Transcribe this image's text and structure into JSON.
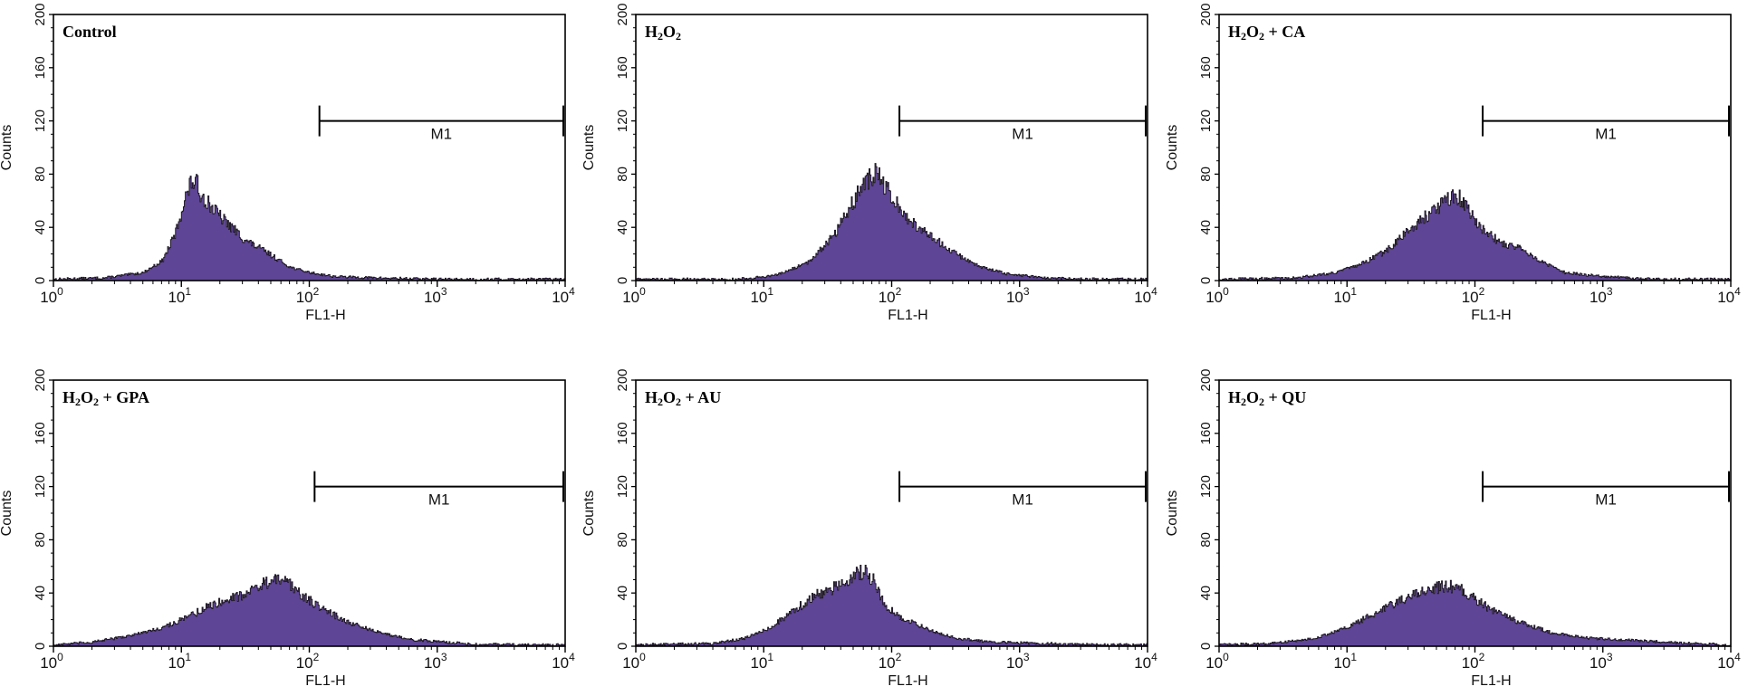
{
  "figure": {
    "histogram_fill": "#5e4595",
    "histogram_stroke": "#1a1320",
    "axis_color": "#000000"
  },
  "chart_data": [
    {
      "type": "area",
      "title": "Control",
      "title_parts": [
        {
          "t": "Control"
        }
      ],
      "xlabel": "FL1-H",
      "ylabel": "Counts",
      "xscale": "log10",
      "xlim": [
        1,
        10000
      ],
      "ylim": [
        0,
        200
      ],
      "yticks": [
        0,
        40,
        80,
        120,
        160,
        200
      ],
      "xticks": [
        {
          "base": "10",
          "exp": "0"
        },
        {
          "base": "10",
          "exp": "1"
        },
        {
          "base": "10",
          "exp": "2"
        },
        {
          "base": "10",
          "exp": "3"
        },
        {
          "base": "10",
          "exp": "4"
        }
      ],
      "marker": {
        "label": "M1",
        "from": 120,
        "to": 10000,
        "y": 120
      },
      "histogram": {
        "x_log": [
          0.0,
          0.4,
          0.7,
          0.85,
          0.95,
          1.02,
          1.08,
          1.12,
          1.15,
          1.3,
          1.5,
          1.65,
          1.75,
          1.85,
          2.0,
          2.2,
          2.5,
          3.0,
          4.0
        ],
        "counts": [
          1,
          2,
          6,
          15,
          35,
          60,
          75,
          72,
          65,
          48,
          30,
          22,
          16,
          10,
          6,
          3,
          2,
          1,
          1
        ]
      }
    },
    {
      "type": "area",
      "title": "H₂O₂",
      "title_parts": [
        {
          "t": "H"
        },
        {
          "t": "2",
          "sub": true
        },
        {
          "t": "O"
        },
        {
          "t": "2",
          "sub": true
        }
      ],
      "xlabel": "FL1-H",
      "ylabel": "Counts",
      "xscale": "log10",
      "xlim": [
        1,
        10000
      ],
      "ylim": [
        0,
        200
      ],
      "yticks": [
        0,
        40,
        80,
        120,
        160,
        200
      ],
      "xticks": [
        {
          "base": "10",
          "exp": "0"
        },
        {
          "base": "10",
          "exp": "1"
        },
        {
          "base": "10",
          "exp": "2"
        },
        {
          "base": "10",
          "exp": "3"
        },
        {
          "base": "10",
          "exp": "4"
        }
      ],
      "marker": {
        "label": "M1",
        "from": 115,
        "to": 10000,
        "y": 120
      },
      "histogram": {
        "x_log": [
          0.0,
          0.8,
          1.1,
          1.35,
          1.55,
          1.7,
          1.8,
          1.88,
          1.95,
          2.05,
          2.2,
          2.35,
          2.5,
          2.7,
          2.9,
          3.2,
          3.6,
          4.0
        ],
        "counts": [
          1,
          1,
          4,
          14,
          35,
          60,
          75,
          80,
          70,
          55,
          40,
          30,
          20,
          10,
          5,
          2,
          1,
          1
        ]
      }
    },
    {
      "type": "area",
      "title": "H₂O₂ + CA",
      "title_parts": [
        {
          "t": "H"
        },
        {
          "t": "2",
          "sub": true
        },
        {
          "t": "O"
        },
        {
          "t": "2",
          "sub": true
        },
        {
          "t": " + CA"
        }
      ],
      "xlabel": "FL1-H",
      "ylabel": "Counts",
      "xscale": "log10",
      "xlim": [
        1,
        10000
      ],
      "ylim": [
        0,
        200
      ],
      "yticks": [
        0,
        40,
        80,
        120,
        160,
        200
      ],
      "xticks": [
        {
          "base": "10",
          "exp": "0"
        },
        {
          "base": "10",
          "exp": "1"
        },
        {
          "base": "10",
          "exp": "2"
        },
        {
          "base": "10",
          "exp": "3"
        },
        {
          "base": "10",
          "exp": "4"
        }
      ],
      "marker": {
        "label": "M1",
        "from": 115,
        "to": 10000,
        "y": 120
      },
      "histogram": {
        "x_log": [
          0.0,
          0.6,
          0.9,
          1.1,
          1.3,
          1.45,
          1.6,
          1.75,
          1.85,
          1.95,
          2.05,
          2.2,
          2.35,
          2.5,
          2.7,
          3.0,
          3.4,
          4.0
        ],
        "counts": [
          1,
          2,
          6,
          12,
          22,
          35,
          48,
          58,
          65,
          52,
          40,
          28,
          25,
          15,
          6,
          3,
          1,
          1
        ]
      }
    },
    {
      "type": "area",
      "title": "H₂O₂ + GPA",
      "title_parts": [
        {
          "t": "H"
        },
        {
          "t": "2",
          "sub": true
        },
        {
          "t": "O"
        },
        {
          "t": "2",
          "sub": true
        },
        {
          "t": " + GPA"
        }
      ],
      "xlabel": "FL1-H",
      "ylabel": "Counts",
      "xscale": "log10",
      "xlim": [
        1,
        10000
      ],
      "ylim": [
        0,
        200
      ],
      "yticks": [
        0,
        40,
        80,
        120,
        160,
        200
      ],
      "xticks": [
        {
          "base": "10",
          "exp": "0"
        },
        {
          "base": "10",
          "exp": "1"
        },
        {
          "base": "10",
          "exp": "2"
        },
        {
          "base": "10",
          "exp": "3"
        },
        {
          "base": "10",
          "exp": "4"
        }
      ],
      "marker": {
        "label": "M1",
        "from": 110,
        "to": 10000,
        "y": 120
      },
      "histogram": {
        "x_log": [
          0.0,
          0.3,
          0.6,
          0.85,
          1.05,
          1.25,
          1.45,
          1.6,
          1.72,
          1.82,
          1.95,
          2.1,
          2.3,
          2.55,
          2.8,
          3.2,
          3.6,
          4.0
        ],
        "counts": [
          1,
          3,
          8,
          14,
          22,
          32,
          38,
          45,
          50,
          48,
          38,
          28,
          18,
          10,
          5,
          2,
          1,
          1
        ]
      }
    },
    {
      "type": "area",
      "title": "H₂O₂ + AU",
      "title_parts": [
        {
          "t": "H"
        },
        {
          "t": "2",
          "sub": true
        },
        {
          "t": "O"
        },
        {
          "t": "2",
          "sub": true
        },
        {
          "t": " + AU"
        }
      ],
      "xlabel": "FL1-H",
      "ylabel": "Counts",
      "xscale": "log10",
      "xlim": [
        1,
        10000
      ],
      "ylim": [
        0,
        200
      ],
      "yticks": [
        0,
        40,
        80,
        120,
        160,
        200
      ],
      "xticks": [
        {
          "base": "10",
          "exp": "0"
        },
        {
          "base": "10",
          "exp": "1"
        },
        {
          "base": "10",
          "exp": "2"
        },
        {
          "base": "10",
          "exp": "3"
        },
        {
          "base": "10",
          "exp": "4"
        }
      ],
      "marker": {
        "label": "M1",
        "from": 115,
        "to": 10000,
        "y": 120
      },
      "histogram": {
        "x_log": [
          0.0,
          0.6,
          0.85,
          1.05,
          1.25,
          1.4,
          1.55,
          1.68,
          1.78,
          1.85,
          1.95,
          2.1,
          2.3,
          2.5,
          2.8,
          3.2,
          3.6,
          4.0
        ],
        "counts": [
          1,
          2,
          6,
          14,
          28,
          38,
          44,
          52,
          56,
          50,
          30,
          20,
          12,
          6,
          3,
          2,
          1,
          1
        ]
      }
    },
    {
      "type": "area",
      "title": "H₂O₂ + QU",
      "title_parts": [
        {
          "t": "H"
        },
        {
          "t": "2",
          "sub": true
        },
        {
          "t": "O"
        },
        {
          "t": "2",
          "sub": true
        },
        {
          "t": " + QU"
        }
      ],
      "xlabel": "FL1-H",
      "ylabel": "Counts",
      "xscale": "log10",
      "xlim": [
        1,
        10000
      ],
      "ylim": [
        0,
        200
      ],
      "yticks": [
        0,
        40,
        80,
        120,
        160,
        200
      ],
      "xticks": [
        {
          "base": "10",
          "exp": "0"
        },
        {
          "base": "10",
          "exp": "1"
        },
        {
          "base": "10",
          "exp": "2"
        },
        {
          "base": "10",
          "exp": "3"
        },
        {
          "base": "10",
          "exp": "4"
        }
      ],
      "marker": {
        "label": "M1",
        "from": 115,
        "to": 10000,
        "y": 120
      },
      "histogram": {
        "x_log": [
          0.0,
          0.4,
          0.75,
          1.0,
          1.2,
          1.4,
          1.55,
          1.7,
          1.8,
          1.9,
          2.0,
          2.15,
          2.35,
          2.6,
          2.9,
          3.3,
          3.7,
          4.0
        ],
        "counts": [
          1,
          2,
          6,
          14,
          24,
          34,
          40,
          44,
          45,
          42,
          35,
          26,
          18,
          10,
          6,
          4,
          2,
          1
        ]
      }
    }
  ]
}
